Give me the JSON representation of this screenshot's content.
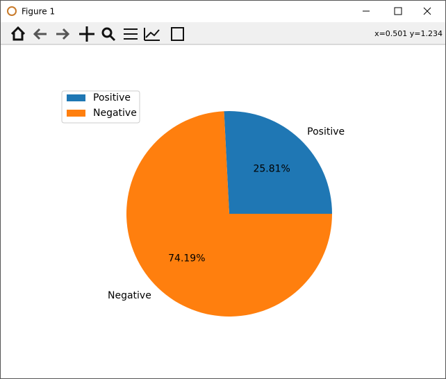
{
  "window": {
    "title": "Figure 1",
    "coordinates": "x=0.501 y=1.234"
  },
  "chart_data": {
    "type": "pie",
    "categories": [
      "Positive",
      "Negative"
    ],
    "values": [
      25.81,
      74.19
    ],
    "value_labels": [
      "25.81%",
      "74.19%"
    ],
    "colors": [
      "#1f77b4",
      "#ff7f0e"
    ],
    "legend": "upper left"
  }
}
